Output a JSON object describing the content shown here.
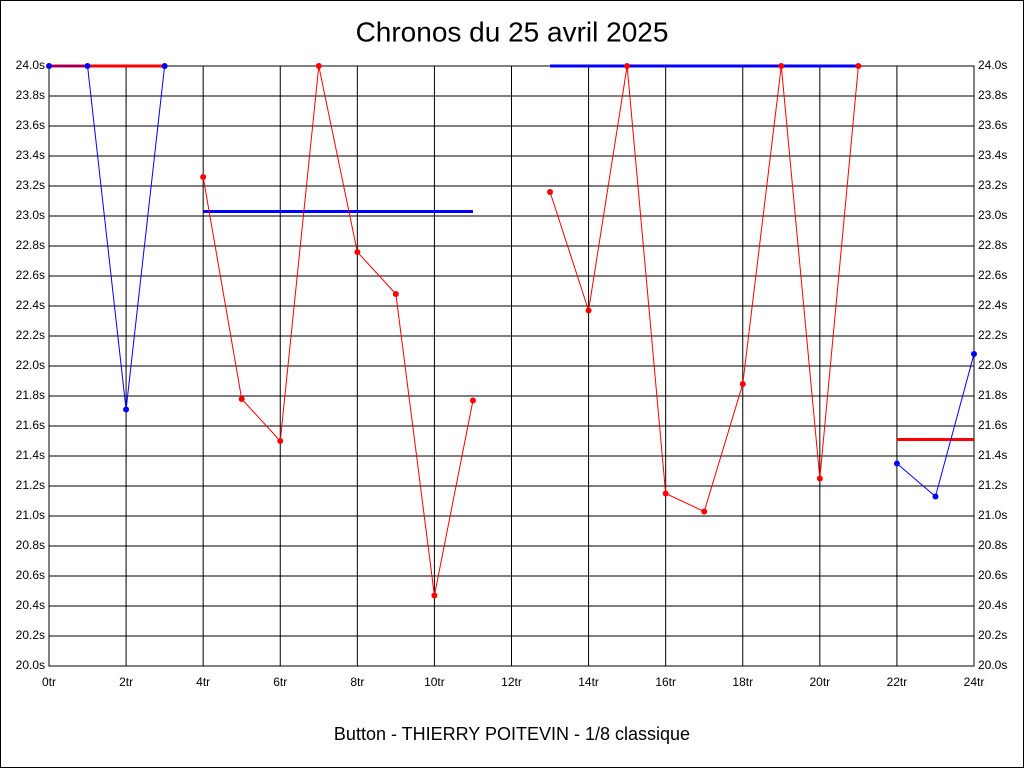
{
  "chart_data": {
    "type": "line",
    "title": "Chronos du 25 avril 2025",
    "x_label": "Button - THIERRY POITEVIN - 1/8 classique",
    "xlim": [
      0,
      24
    ],
    "xticks": [
      {
        "value": 0,
        "label": "0tr"
      },
      {
        "value": 2,
        "label": "2tr"
      },
      {
        "value": 4,
        "label": "4tr"
      },
      {
        "value": 6,
        "label": "6tr"
      },
      {
        "value": 8,
        "label": "8tr"
      },
      {
        "value": 10,
        "label": "10tr"
      },
      {
        "value": 12,
        "label": "12tr"
      },
      {
        "value": 14,
        "label": "14tr"
      },
      {
        "value": 16,
        "label": "16tr"
      },
      {
        "value": 18,
        "label": "18tr"
      },
      {
        "value": 20,
        "label": "20tr"
      },
      {
        "value": 22,
        "label": "22tr"
      },
      {
        "value": 24,
        "label": "24tr"
      }
    ],
    "ylim": [
      20.0,
      24.0
    ],
    "yticks": [
      {
        "value": 20.0,
        "label": "20.0s"
      },
      {
        "value": 20.2,
        "label": "20.2s"
      },
      {
        "value": 20.4,
        "label": "20.4s"
      },
      {
        "value": 20.6,
        "label": "20.6s"
      },
      {
        "value": 20.8,
        "label": "20.8s"
      },
      {
        "value": 21.0,
        "label": "21.0s"
      },
      {
        "value": 21.2,
        "label": "21.2s"
      },
      {
        "value": 21.4,
        "label": "21.4s"
      },
      {
        "value": 21.6,
        "label": "21.6s"
      },
      {
        "value": 21.8,
        "label": "21.8s"
      },
      {
        "value": 22.0,
        "label": "22.0s"
      },
      {
        "value": 22.2,
        "label": "22.2s"
      },
      {
        "value": 22.4,
        "label": "22.4s"
      },
      {
        "value": 22.6,
        "label": "22.6s"
      },
      {
        "value": 22.8,
        "label": "22.8s"
      },
      {
        "value": 23.0,
        "label": "23.0s"
      },
      {
        "value": 23.2,
        "label": "23.2s"
      },
      {
        "value": 23.4,
        "label": "23.4s"
      },
      {
        "value": 23.6,
        "label": "23.6s"
      },
      {
        "value": 23.8,
        "label": "23.8s"
      },
      {
        "value": 24.0,
        "label": "24.0s"
      }
    ],
    "mirror_y_labels": true,
    "grid": true,
    "series": [
      {
        "color": "#ff0000",
        "line_width": 3,
        "markers": false,
        "x": [
          0,
          3
        ],
        "values": [
          24.0,
          24.0
        ]
      },
      {
        "color": "#0000ff",
        "line_width": 1,
        "markers": true,
        "x": [
          0,
          1,
          2,
          3
        ],
        "values": [
          24.0,
          24.0,
          21.71,
          24.0
        ]
      },
      {
        "color": "#0000ff",
        "line_width": 3,
        "markers": false,
        "x": [
          4,
          11
        ],
        "values": [
          23.03,
          23.03
        ]
      },
      {
        "color": "#ff0000",
        "line_width": 1,
        "markers": true,
        "x": [
          4,
          5,
          6,
          7,
          8,
          9,
          10,
          11
        ],
        "values": [
          23.26,
          21.78,
          21.5,
          24.0,
          22.76,
          22.48,
          20.47,
          21.77
        ]
      },
      {
        "color": "#0000ff",
        "line_width": 3,
        "markers": false,
        "x": [
          13,
          21
        ],
        "values": [
          24.0,
          24.0
        ]
      },
      {
        "color": "#ff0000",
        "line_width": 1,
        "markers": true,
        "x": [
          13,
          14,
          15,
          16,
          17,
          18,
          19,
          20,
          21
        ],
        "values": [
          23.16,
          22.37,
          24.0,
          21.15,
          21.03,
          21.88,
          24.0,
          21.25,
          24.0
        ]
      },
      {
        "color": "#ff0000",
        "line_width": 3,
        "markers": false,
        "x": [
          22,
          24
        ],
        "values": [
          21.51,
          21.51
        ]
      },
      {
        "color": "#0000ff",
        "line_width": 1,
        "markers": true,
        "x": [
          22,
          23,
          24
        ],
        "values": [
          21.35,
          21.13,
          22.08
        ]
      }
    ]
  }
}
